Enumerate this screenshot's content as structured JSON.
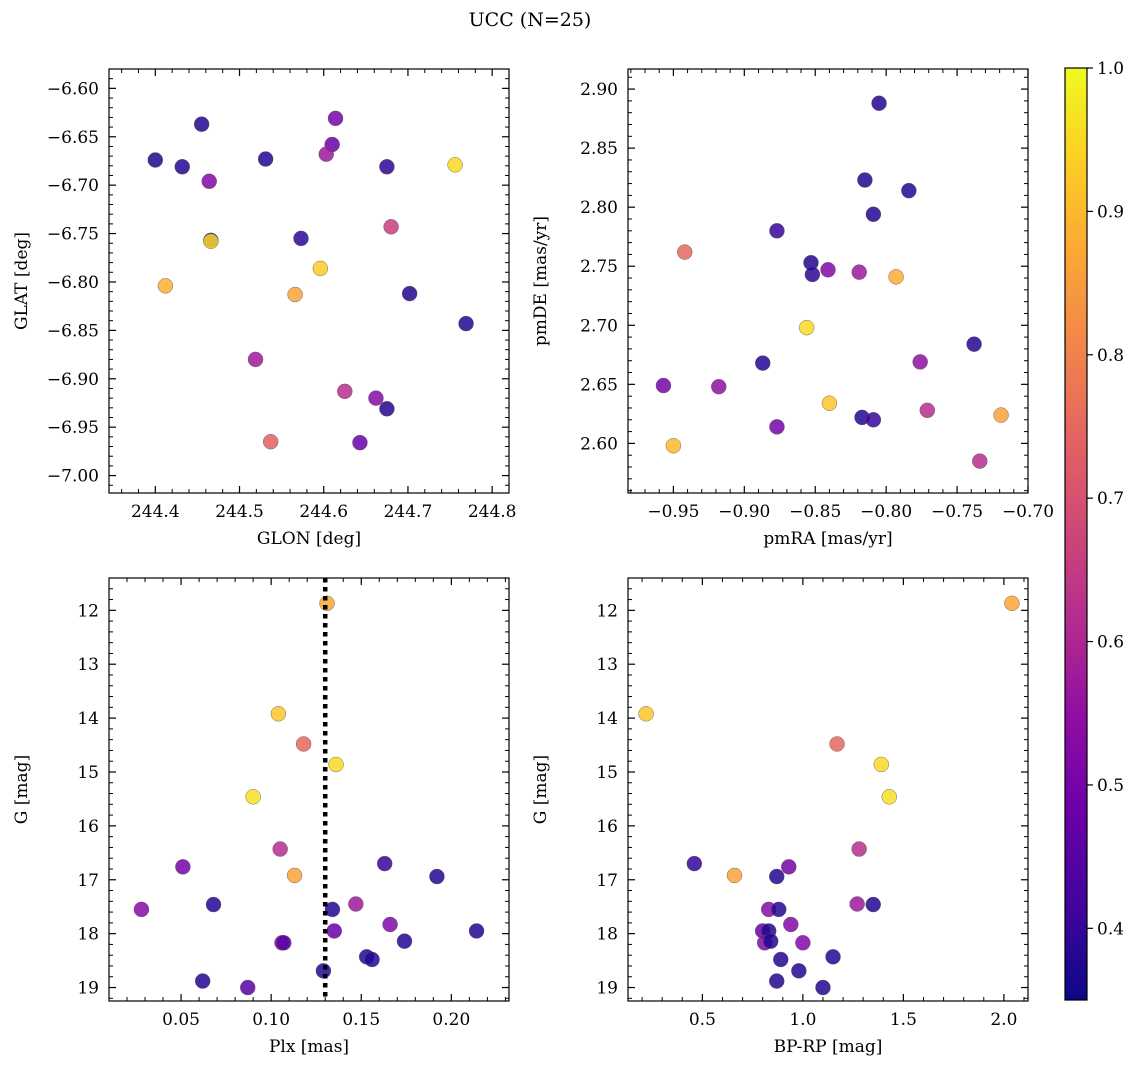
{
  "title": "UCC (N=25)",
  "colorbar": {
    "min": 0.35,
    "max": 1.0,
    "ticks": [
      0.4,
      0.5,
      0.6,
      0.7,
      0.8,
      0.9,
      1.0
    ],
    "tick_labels": [
      "0.4",
      "0.5",
      "0.6",
      "0.7",
      "0.8",
      "0.9",
      "1.0"
    ],
    "colormap": "plasma"
  },
  "chart_data": [
    {
      "type": "scatter",
      "xlabel": "GLON [deg]",
      "ylabel": "GLAT [deg]",
      "xlim": [
        244.345,
        244.82
      ],
      "ylim": [
        -7.018,
        -6.58
      ],
      "xticks": [
        244.4,
        244.5,
        244.6,
        244.7,
        244.8
      ],
      "xtick_labels": [
        "244.4",
        "244.5",
        "244.6",
        "244.7",
        "244.8"
      ],
      "yticks": [
        -7.0,
        -6.95,
        -6.9,
        -6.85,
        -6.8,
        -6.75,
        -6.7,
        -6.65,
        -6.6
      ],
      "ytick_labels": [
        "−7.00",
        "−6.95",
        "−6.90",
        "−6.85",
        "−6.80",
        "−6.75",
        "−6.70",
        "−6.65",
        "−6.60"
      ],
      "points": [
        {
          "x": 244.4,
          "y": -6.674,
          "c": 0.37
        },
        {
          "x": 244.432,
          "y": -6.681,
          "c": 0.38
        },
        {
          "x": 244.455,
          "y": -6.637,
          "c": 0.38
        },
        {
          "x": 244.464,
          "y": -6.696,
          "c": 0.52
        },
        {
          "x": 244.466,
          "y": -6.757,
          "c": 0.3
        },
        {
          "x": 244.466,
          "y": -6.758,
          "c": 0.95
        },
        {
          "x": 244.412,
          "y": -6.804,
          "c": 0.89
        },
        {
          "x": 244.531,
          "y": -6.673,
          "c": 0.38
        },
        {
          "x": 244.573,
          "y": -6.755,
          "c": 0.39
        },
        {
          "x": 244.596,
          "y": -6.786,
          "c": 0.93
        },
        {
          "x": 244.566,
          "y": -6.813,
          "c": 0.86
        },
        {
          "x": 244.519,
          "y": -6.88,
          "c": 0.57
        },
        {
          "x": 244.537,
          "y": -6.965,
          "c": 0.74
        },
        {
          "x": 244.614,
          "y": -6.631,
          "c": 0.5
        },
        {
          "x": 244.61,
          "y": -6.658,
          "c": 0.48
        },
        {
          "x": 244.603,
          "y": -6.668,
          "c": 0.57
        },
        {
          "x": 244.675,
          "y": -6.681,
          "c": 0.39
        },
        {
          "x": 244.68,
          "y": -6.743,
          "c": 0.66
        },
        {
          "x": 244.702,
          "y": -6.812,
          "c": 0.38
        },
        {
          "x": 244.756,
          "y": -6.679,
          "c": 0.95
        },
        {
          "x": 244.769,
          "y": -6.843,
          "c": 0.38
        },
        {
          "x": 244.625,
          "y": -6.913,
          "c": 0.62
        },
        {
          "x": 244.662,
          "y": -6.92,
          "c": 0.53
        },
        {
          "x": 244.675,
          "y": -6.931,
          "c": 0.38
        },
        {
          "x": 244.643,
          "y": -6.966,
          "c": 0.48
        }
      ]
    },
    {
      "type": "scatter",
      "xlabel": "pmRA [mas/yr]",
      "ylabel": "pmDE [mas/yr]",
      "xlim": [
        -0.982,
        -0.7
      ],
      "ylim": [
        2.558,
        2.917
      ],
      "xticks": [
        -0.95,
        -0.9,
        -0.85,
        -0.8,
        -0.75,
        -0.7
      ],
      "xtick_labels": [
        "−0.95",
        "−0.90",
        "−0.85",
        "−0.80",
        "−0.75",
        "−0.70"
      ],
      "yticks": [
        2.6,
        2.65,
        2.7,
        2.75,
        2.8,
        2.85,
        2.9
      ],
      "ytick_labels": [
        "2.60",
        "2.65",
        "2.70",
        "2.75",
        "2.80",
        "2.85",
        "2.90"
      ],
      "points": [
        {
          "x": -0.805,
          "y": 2.888,
          "c": 0.38
        },
        {
          "x": -0.815,
          "y": 2.823,
          "c": 0.38
        },
        {
          "x": -0.784,
          "y": 2.814,
          "c": 0.38
        },
        {
          "x": -0.809,
          "y": 2.794,
          "c": 0.38
        },
        {
          "x": -0.877,
          "y": 2.78,
          "c": 0.4
        },
        {
          "x": -0.942,
          "y": 2.762,
          "c": 0.75
        },
        {
          "x": -0.853,
          "y": 2.753,
          "c": 0.38
        },
        {
          "x": -0.852,
          "y": 2.743,
          "c": 0.39
        },
        {
          "x": -0.841,
          "y": 2.747,
          "c": 0.52
        },
        {
          "x": -0.819,
          "y": 2.745,
          "c": 0.57
        },
        {
          "x": -0.793,
          "y": 2.741,
          "c": 0.88
        },
        {
          "x": -0.856,
          "y": 2.698,
          "c": 0.95
        },
        {
          "x": -0.738,
          "y": 2.684,
          "c": 0.38
        },
        {
          "x": -0.887,
          "y": 2.668,
          "c": 0.38
        },
        {
          "x": -0.776,
          "y": 2.669,
          "c": 0.55
        },
        {
          "x": -0.957,
          "y": 2.649,
          "c": 0.5
        },
        {
          "x": -0.918,
          "y": 2.648,
          "c": 0.55
        },
        {
          "x": -0.84,
          "y": 2.634,
          "c": 0.92
        },
        {
          "x": -0.771,
          "y": 2.628,
          "c": 0.62
        },
        {
          "x": -0.719,
          "y": 2.624,
          "c": 0.86
        },
        {
          "x": -0.817,
          "y": 2.622,
          "c": 0.38
        },
        {
          "x": -0.809,
          "y": 2.62,
          "c": 0.4
        },
        {
          "x": -0.877,
          "y": 2.614,
          "c": 0.5
        },
        {
          "x": -0.95,
          "y": 2.598,
          "c": 0.9
        },
        {
          "x": -0.734,
          "y": 2.585,
          "c": 0.62
        }
      ]
    },
    {
      "type": "scatter",
      "xlabel": "Plx [mas]",
      "ylabel": "G [mag]",
      "xlim": [
        0.01,
        0.232
      ],
      "ylim": [
        19.25,
        11.4
      ],
      "xticks": [
        0.05,
        0.1,
        0.15,
        0.2
      ],
      "xtick_labels": [
        "0.05",
        "0.10",
        "0.15",
        "0.20"
      ],
      "yticks": [
        12,
        13,
        14,
        15,
        16,
        17,
        18,
        19
      ],
      "ytick_labels": [
        "12",
        "13",
        "14",
        "15",
        "16",
        "17",
        "18",
        "19"
      ],
      "vline": {
        "x": 0.13,
        "style": "dotted"
      },
      "points": [
        {
          "x": 0.131,
          "y": 11.87,
          "c": 0.87
        },
        {
          "x": 0.104,
          "y": 13.92,
          "c": 0.92
        },
        {
          "x": 0.118,
          "y": 14.48,
          "c": 0.75
        },
        {
          "x": 0.136,
          "y": 14.86,
          "c": 0.95
        },
        {
          "x": 0.09,
          "y": 15.46,
          "c": 0.96
        },
        {
          "x": 0.105,
          "y": 16.43,
          "c": 0.62
        },
        {
          "x": 0.051,
          "y": 16.76,
          "c": 0.5
        },
        {
          "x": 0.163,
          "y": 16.7,
          "c": 0.4
        },
        {
          "x": 0.113,
          "y": 16.92,
          "c": 0.86
        },
        {
          "x": 0.192,
          "y": 16.94,
          "c": 0.38
        },
        {
          "x": 0.028,
          "y": 17.55,
          "c": 0.53
        },
        {
          "x": 0.068,
          "y": 17.46,
          "c": 0.38
        },
        {
          "x": 0.147,
          "y": 17.45,
          "c": 0.57
        },
        {
          "x": 0.134,
          "y": 17.55,
          "c": 0.38
        },
        {
          "x": 0.166,
          "y": 17.83,
          "c": 0.52
        },
        {
          "x": 0.135,
          "y": 17.95,
          "c": 0.48
        },
        {
          "x": 0.214,
          "y": 17.95,
          "c": 0.38
        },
        {
          "x": 0.106,
          "y": 18.17,
          "c": 0.52
        },
        {
          "x": 0.107,
          "y": 18.17,
          "c": 0.45
        },
        {
          "x": 0.174,
          "y": 18.14,
          "c": 0.38
        },
        {
          "x": 0.153,
          "y": 18.43,
          "c": 0.38
        },
        {
          "x": 0.156,
          "y": 18.48,
          "c": 0.38
        },
        {
          "x": 0.129,
          "y": 18.69,
          "c": 0.38
        },
        {
          "x": 0.062,
          "y": 18.88,
          "c": 0.38
        },
        {
          "x": 0.087,
          "y": 19.0,
          "c": 0.45
        }
      ]
    },
    {
      "type": "scatter",
      "xlabel": "BP-RP [mag]",
      "ylabel": "G [mag]",
      "xlim": [
        0.13,
        2.12
      ],
      "ylim": [
        19.25,
        11.4
      ],
      "xticks": [
        0.5,
        1.0,
        1.5,
        2.0
      ],
      "xtick_labels": [
        "0.5",
        "1.0",
        "1.5",
        "2.0"
      ],
      "yticks": [
        12,
        13,
        14,
        15,
        16,
        17,
        18,
        19
      ],
      "ytick_labels": [
        "12",
        "13",
        "14",
        "15",
        "16",
        "17",
        "18",
        "19"
      ],
      "points": [
        {
          "x": 2.04,
          "y": 11.87,
          "c": 0.87
        },
        {
          "x": 0.22,
          "y": 13.92,
          "c": 0.92
        },
        {
          "x": 1.17,
          "y": 14.48,
          "c": 0.75
        },
        {
          "x": 1.39,
          "y": 14.86,
          "c": 0.95
        },
        {
          "x": 1.43,
          "y": 15.46,
          "c": 0.96
        },
        {
          "x": 1.28,
          "y": 16.43,
          "c": 0.62
        },
        {
          "x": 0.46,
          "y": 16.7,
          "c": 0.4
        },
        {
          "x": 0.93,
          "y": 16.76,
          "c": 0.5
        },
        {
          "x": 0.66,
          "y": 16.92,
          "c": 0.86
        },
        {
          "x": 0.87,
          "y": 16.94,
          "c": 0.38
        },
        {
          "x": 1.27,
          "y": 17.45,
          "c": 0.57
        },
        {
          "x": 1.35,
          "y": 17.46,
          "c": 0.38
        },
        {
          "x": 0.83,
          "y": 17.55,
          "c": 0.53
        },
        {
          "x": 0.88,
          "y": 17.55,
          "c": 0.38
        },
        {
          "x": 0.94,
          "y": 17.83,
          "c": 0.52
        },
        {
          "x": 0.8,
          "y": 17.95,
          "c": 0.48
        },
        {
          "x": 0.83,
          "y": 17.95,
          "c": 0.38
        },
        {
          "x": 0.81,
          "y": 18.17,
          "c": 0.52
        },
        {
          "x": 0.84,
          "y": 18.14,
          "c": 0.38
        },
        {
          "x": 1.0,
          "y": 18.17,
          "c": 0.52
        },
        {
          "x": 1.15,
          "y": 18.43,
          "c": 0.38
        },
        {
          "x": 0.89,
          "y": 18.48,
          "c": 0.38
        },
        {
          "x": 0.98,
          "y": 18.69,
          "c": 0.38
        },
        {
          "x": 0.87,
          "y": 18.88,
          "c": 0.38
        },
        {
          "x": 1.1,
          "y": 19.0,
          "c": 0.38
        }
      ]
    }
  ]
}
